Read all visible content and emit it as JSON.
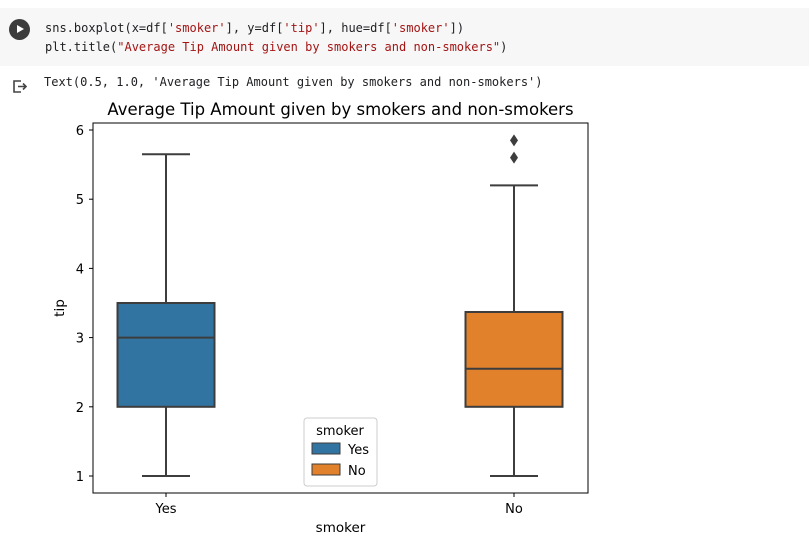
{
  "code_cell": {
    "line1": {
      "p1": "sns.boxplot(x=df[",
      "s1": "'smoker'",
      "p2": "], y=df[",
      "s2": "'tip'",
      "p3": "], hue=df[",
      "s3": "'smoker'",
      "p4": "])"
    },
    "line2": {
      "p1": "plt.title(",
      "s1": "\"Average Tip Amount given by smokers and non-smokers\"",
      "p2": ")"
    }
  },
  "output": {
    "text": "Text(0.5, 1.0, 'Average Tip Amount given by smokers and non-smokers')"
  },
  "chart_data": {
    "type": "box",
    "title": "Average Tip Amount given by smokers and non-smokers",
    "xlabel": "smoker",
    "ylabel": "tip",
    "ylim": [
      0.75,
      6.1
    ],
    "yticks": [
      1,
      2,
      3,
      4,
      5,
      6
    ],
    "categories": [
      "Yes",
      "No"
    ],
    "series": [
      {
        "name": "Yes",
        "color": "#3274a1",
        "whisker_low": 1.0,
        "q1": 2.0,
        "median": 3.0,
        "q3": 3.5,
        "whisker_high": 5.65,
        "outliers": []
      },
      {
        "name": "No",
        "color": "#e1812c",
        "whisker_low": 1.0,
        "q1": 2.0,
        "median": 2.55,
        "q3": 3.37,
        "whisker_high": 5.2,
        "outliers": [
          5.6,
          5.85
        ]
      }
    ],
    "legend": {
      "title": "smoker",
      "entries": [
        "Yes",
        "No"
      ],
      "placement": "lower center"
    },
    "grid": false
  }
}
